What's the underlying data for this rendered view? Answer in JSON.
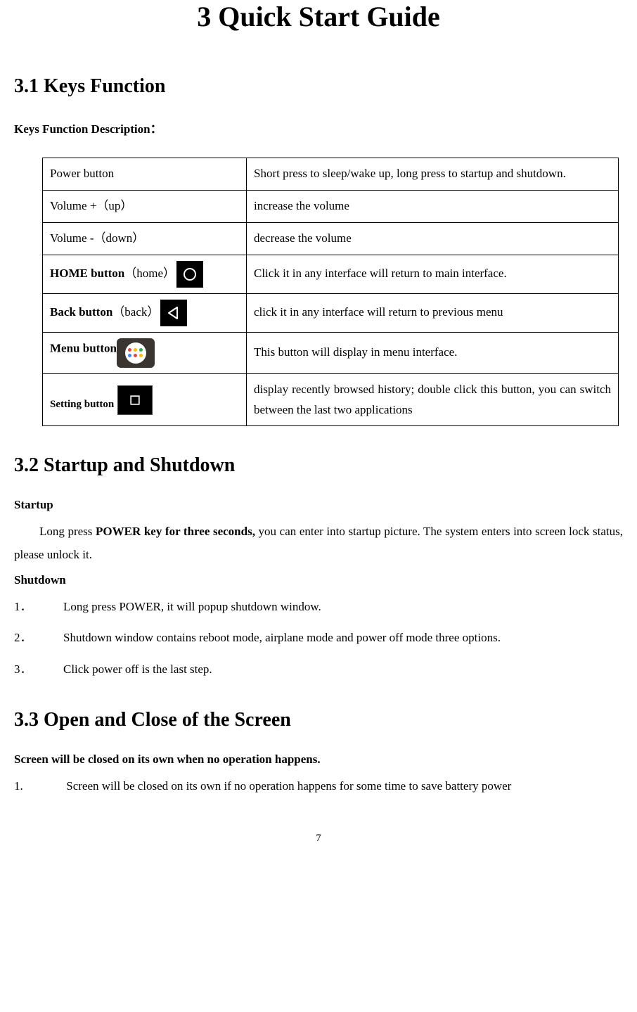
{
  "title": "3 Quick Start Guide",
  "section1": {
    "heading": "3.1   Keys Function",
    "subhead": "Keys Function Description：",
    "rows": [
      {
        "key_html": "Power button",
        "desc": "Short press to sleep/wake up, long press to startup and shutdown."
      },
      {
        "key_html": "Volume +（up）",
        "desc": "increase the volume"
      },
      {
        "key_html": "Volume -（down）",
        "desc": "decrease the volume"
      },
      {
        "key_bold": "HOME button",
        "key_tail": "（home）",
        "icon": "home",
        "desc": "Click it in any interface will return to main interface."
      },
      {
        "key_bold": "Back button",
        "key_tail": "（back）",
        "icon": "back",
        "desc": "click it in any interface will return to previous menu"
      },
      {
        "key_bold": "Menu button",
        "key_tail": "",
        "icon": "menu",
        "desc": "This button will display in menu interface."
      },
      {
        "key_bold_small": "Setting button",
        "key_tail": "",
        "icon": "setting",
        "desc": "display recently browsed history; double click this button, you can switch between the last two applications"
      }
    ]
  },
  "section2": {
    "heading": "3.2   Startup and Shutdown",
    "startup_label": "Startup",
    "startup_para_pre": "Long press ",
    "startup_para_bold": "POWER key for three seconds,",
    "startup_para_post": " you can enter into startup picture. The system enters into screen lock status, please unlock it.",
    "shutdown_label": "Shutdown",
    "shutdown_items": [
      "Long press POWER, it will popup shutdown window.",
      "Shutdown window contains reboot mode, airplane mode and power off mode three options.",
      "Click power off is the last step."
    ]
  },
  "section3": {
    "heading": "3.3   Open and Close of the Screen",
    "sub": "Screen will be closed on its own when no operation happens.",
    "items": [
      "Screen will be closed on its own if no operation happens for some time to save battery power"
    ]
  },
  "page_number": "7",
  "icon_colors": {
    "menu_dots": [
      "#d94b3f",
      "#fbbc05",
      "#34a853",
      "#4285f4",
      "#d94b3f",
      "#fbbc05"
    ]
  }
}
